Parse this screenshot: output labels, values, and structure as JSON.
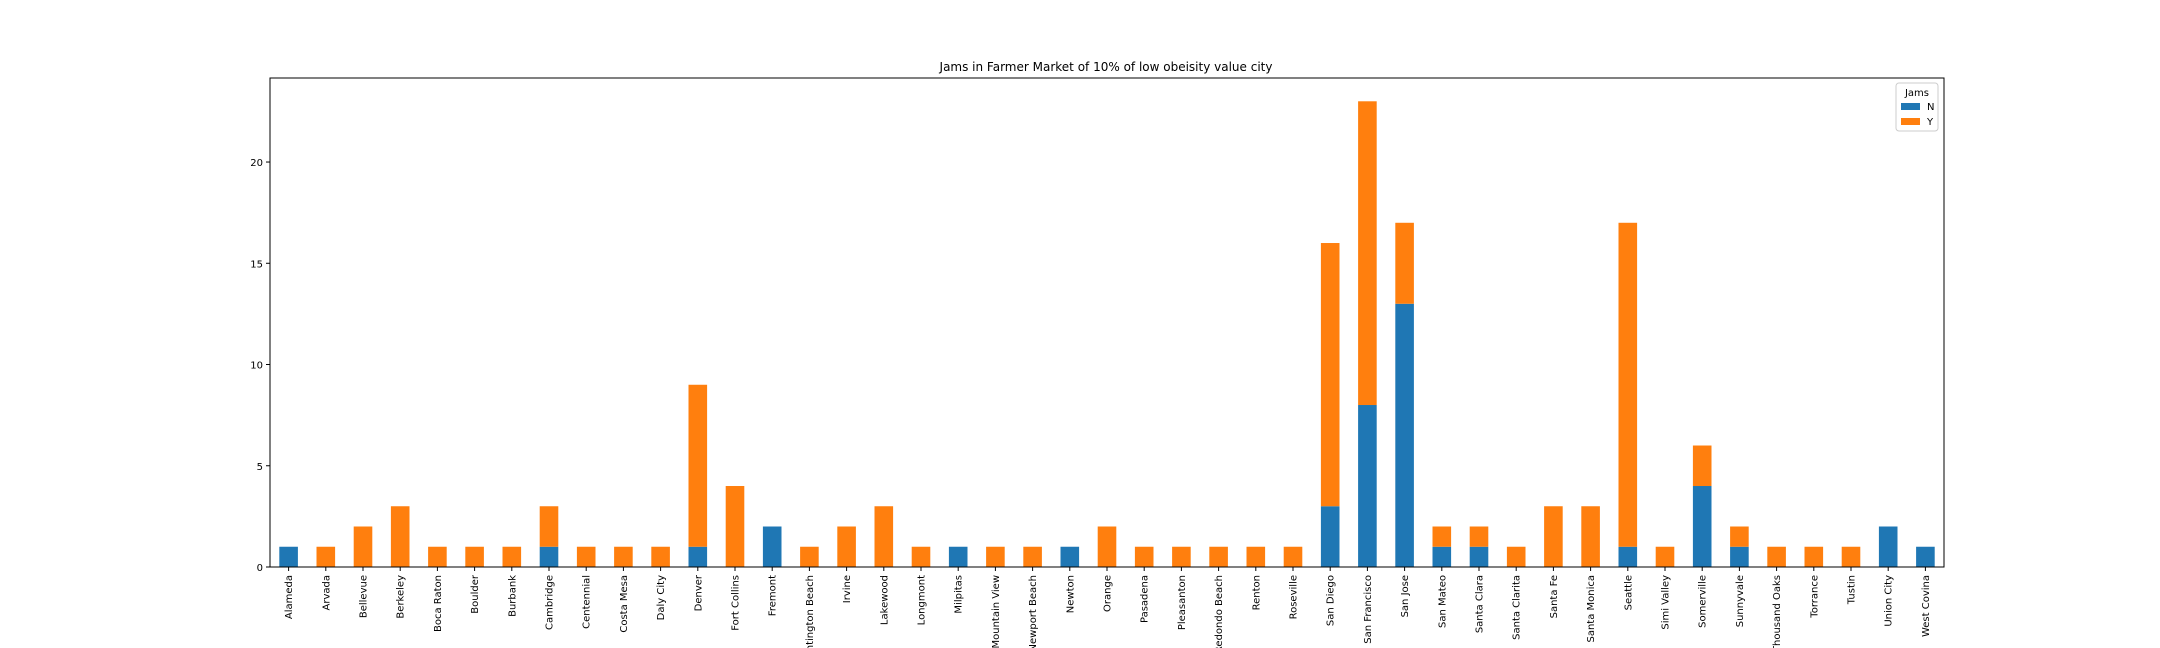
{
  "chart_data": {
    "type": "bar",
    "stacked": true,
    "title": "Jams in Farmer Market of 10% of low obeisity value city",
    "xlabel": "",
    "ylabel": "",
    "ylim": [
      0,
      24.15
    ],
    "yticks": [
      0,
      5,
      10,
      15,
      20
    ],
    "grid": false,
    "legend": {
      "title": "Jams",
      "placement": "top-right"
    },
    "categories": [
      "Alameda",
      "Arvada",
      "Bellevue",
      "Berkeley",
      "Boca Raton",
      "Boulder",
      "Burbank",
      "Cambridge",
      "Centennial",
      "Costa Mesa",
      "Daly City",
      "Denver",
      "Fort Collins",
      "Fremont",
      "Huntington Beach",
      "Irvine",
      "Lakewood",
      "Longmont",
      "Milpitas",
      "Mountain View",
      "Newport Beach",
      "Newton",
      "Orange",
      "Pasadena",
      "Pleasanton",
      "Redondo Beach",
      "Renton",
      "Roseville",
      "San Diego",
      "San Francisco",
      "San Jose",
      "San Mateo",
      "Santa Clara",
      "Santa Clarita",
      "Santa Fe",
      "Santa Monica",
      "Seattle",
      "Simi Valley",
      "Somerville",
      "Sunnyvale",
      "Thousand Oaks",
      "Torrance",
      "Tustin",
      "Union City",
      "West Covina"
    ],
    "series": [
      {
        "name": "N",
        "color": "#1f77b4",
        "values": [
          1,
          0,
          0,
          0,
          0,
          0,
          0,
          1,
          0,
          0,
          0,
          1,
          0,
          2,
          0,
          0,
          0,
          0,
          1,
          0,
          0,
          1,
          0,
          0,
          0,
          0,
          0,
          0,
          3,
          8,
          13,
          1,
          1,
          0,
          0,
          0,
          1,
          0,
          4,
          1,
          0,
          0,
          0,
          2,
          1
        ]
      },
      {
        "name": "Y",
        "color": "#ff7f0e",
        "values": [
          0,
          1,
          2,
          3,
          1,
          1,
          1,
          2,
          1,
          1,
          1,
          8,
          4,
          0,
          1,
          2,
          3,
          1,
          0,
          1,
          1,
          0,
          2,
          1,
          1,
          1,
          1,
          1,
          13,
          15,
          4,
          1,
          1,
          1,
          3,
          3,
          16,
          1,
          2,
          1,
          1,
          1,
          1,
          0,
          0
        ]
      }
    ]
  }
}
